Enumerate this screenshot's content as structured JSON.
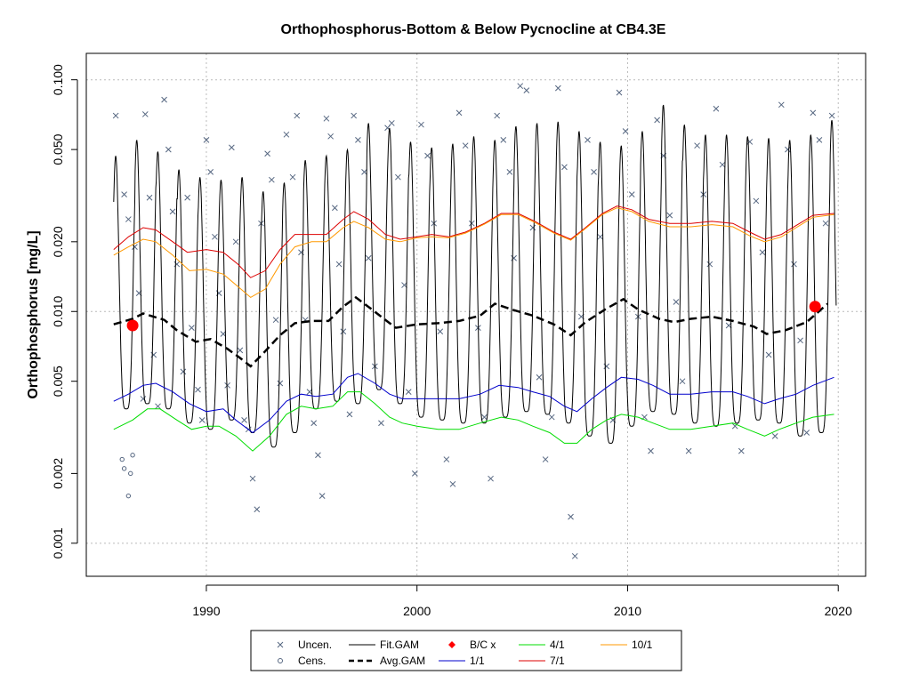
{
  "chart_data": {
    "type": "line",
    "title": "Orthophosphorus-Bottom & Below Pycnocline at CB4.3E",
    "xlabel": "",
    "ylabel": "Orthophosphorus [mg/L]",
    "y_scale": "log",
    "xlim": [
      1984.3,
      2021.3
    ],
    "ylim": [
      0.00072,
      0.13
    ],
    "x_ticks": [
      1990,
      2000,
      2010,
      2020
    ],
    "x_tick_labels": [
      "1990",
      "2000",
      "2010",
      "2020"
    ],
    "y_ticks": [
      0.001,
      0.002,
      0.005,
      0.01,
      0.02,
      0.05,
      0.1
    ],
    "y_tick_labels": [
      "0.001",
      "0.002",
      "0.005",
      "0.010",
      "0.020",
      "0.050",
      "0.100"
    ],
    "grid": true,
    "legend_placement": "bottom",
    "legend": [
      "Uncen.",
      "Cens.",
      "Fit.GAM",
      "Avg.GAM",
      "B/C x",
      "1/1",
      "4/1",
      "7/1",
      "10/1"
    ],
    "series": [
      {
        "name": "Avg.GAM",
        "x": [
          1985.6,
          1986.5,
          1987.0,
          1988.0,
          1988.6,
          1989.5,
          1990.2,
          1991.0,
          1991.6,
          1992.1,
          1992.7,
          1993.5,
          1994.2,
          1995.0,
          1995.8,
          1996.5,
          1997.1,
          1997.8,
          1998.5,
          1999.0,
          2000.0,
          2001.0,
          2002.0,
          2003.0,
          2003.7,
          2004.5,
          2005.5,
          2006.5,
          2007.3,
          2008.0,
          2009.0,
          2009.8,
          2010.5,
          2011.5,
          2012.2,
          2013.0,
          2014.0,
          2015.0,
          2016.0,
          2016.6,
          2017.5,
          2018.5,
          2019.5
        ],
        "y": [
          0.0088,
          0.0093,
          0.0098,
          0.0092,
          0.0083,
          0.0074,
          0.0076,
          0.0069,
          0.0063,
          0.0058,
          0.0066,
          0.0079,
          0.0089,
          0.0091,
          0.0091,
          0.0105,
          0.0115,
          0.0103,
          0.0092,
          0.0085,
          0.0088,
          0.0089,
          0.0091,
          0.0096,
          0.0108,
          0.0102,
          0.0096,
          0.0088,
          0.0079,
          0.009,
          0.0103,
          0.0113,
          0.0102,
          0.0093,
          0.009,
          0.0093,
          0.0095,
          0.0091,
          0.0086,
          0.008,
          0.0083,
          0.009,
          0.0108
        ]
      },
      {
        "name": "1/1",
        "x": [
          1985.6,
          1986.3,
          1987.0,
          1987.6,
          1988.4,
          1989.2,
          1990.0,
          1990.8,
          1991.4,
          1992.2,
          1993.0,
          1993.8,
          1994.5,
          1995.2,
          1996.0,
          1996.7,
          1997.2,
          1998.0,
          1998.7,
          1999.3,
          2000.0,
          2001.0,
          2002.0,
          2003.0,
          2003.9,
          2004.8,
          2005.5,
          2006.3,
          2007.0,
          2007.6,
          2008.3,
          2009.0,
          2009.7,
          2010.5,
          2011.2,
          2012.0,
          2013.0,
          2014.0,
          2015.0,
          2015.7,
          2016.5,
          2017.2,
          2018.0,
          2018.8,
          2019.8
        ],
        "y": [
          0.0041,
          0.0044,
          0.0048,
          0.0049,
          0.0045,
          0.004,
          0.0037,
          0.0038,
          0.0034,
          0.003,
          0.0034,
          0.0041,
          0.0044,
          0.0043,
          0.0044,
          0.0052,
          0.0054,
          0.0049,
          0.0044,
          0.0042,
          0.0042,
          0.0042,
          0.0042,
          0.0044,
          0.0048,
          0.0047,
          0.0045,
          0.0043,
          0.0039,
          0.0037,
          0.0042,
          0.0047,
          0.0052,
          0.0051,
          0.0048,
          0.0044,
          0.0044,
          0.0045,
          0.0045,
          0.0043,
          0.004,
          0.0042,
          0.0044,
          0.0048,
          0.0052
        ]
      },
      {
        "name": "4/1",
        "x": [
          1985.6,
          1986.5,
          1987.2,
          1987.8,
          1988.6,
          1989.3,
          1990.0,
          1990.6,
          1991.4,
          1992.2,
          1993.0,
          1993.8,
          1994.5,
          1995.2,
          1996.0,
          1996.7,
          1997.3,
          1998.0,
          1998.7,
          1999.3,
          2000.0,
          2001.0,
          2002.0,
          2003.0,
          2004.0,
          2004.8,
          2005.5,
          2006.3,
          2007.0,
          2007.6,
          2008.3,
          2009.0,
          2009.7,
          2010.5,
          2011.2,
          2012.0,
          2013.0,
          2014.0,
          2015.0,
          2015.7,
          2016.5,
          2017.2,
          2018.0,
          2018.8,
          2019.8
        ],
        "y": [
          0.0031,
          0.0034,
          0.0038,
          0.0038,
          0.0034,
          0.0031,
          0.0032,
          0.0032,
          0.0029,
          0.0025,
          0.0029,
          0.0036,
          0.0039,
          0.0038,
          0.0039,
          0.0045,
          0.0045,
          0.004,
          0.0035,
          0.0033,
          0.0032,
          0.0031,
          0.0031,
          0.0033,
          0.0035,
          0.0034,
          0.0032,
          0.003,
          0.0027,
          0.0027,
          0.0031,
          0.0034,
          0.0036,
          0.0035,
          0.0033,
          0.0031,
          0.0031,
          0.0032,
          0.0033,
          0.0031,
          0.0029,
          0.0031,
          0.0033,
          0.0035,
          0.0036
        ]
      },
      {
        "name": "7/1",
        "x": [
          1985.6,
          1986.3,
          1987.0,
          1987.6,
          1988.4,
          1989.1,
          1990.0,
          1990.8,
          1991.5,
          1992.1,
          1992.8,
          1993.5,
          1994.2,
          1995.0,
          1995.7,
          1996.5,
          1997.0,
          1997.7,
          1998.5,
          1999.2,
          2000.0,
          2000.7,
          2001.5,
          2002.3,
          2003.2,
          2004.0,
          2004.8,
          2005.6,
          2006.5,
          2007.3,
          2008.0,
          2008.8,
          2009.5,
          2010.2,
          2011.0,
          2012.0,
          2013.0,
          2014.0,
          2015.0,
          2015.8,
          2016.5,
          2017.3,
          2018.0,
          2018.8,
          2019.8
        ],
        "y": [
          0.0185,
          0.021,
          0.023,
          0.0225,
          0.02,
          0.018,
          0.0185,
          0.018,
          0.016,
          0.014,
          0.015,
          0.0185,
          0.0215,
          0.0215,
          0.0215,
          0.025,
          0.027,
          0.025,
          0.0215,
          0.0205,
          0.021,
          0.0215,
          0.021,
          0.022,
          0.024,
          0.0265,
          0.0265,
          0.0245,
          0.022,
          0.0205,
          0.023,
          0.0265,
          0.0285,
          0.0275,
          0.025,
          0.024,
          0.024,
          0.0245,
          0.024,
          0.022,
          0.0205,
          0.0215,
          0.0235,
          0.026,
          0.0265
        ]
      },
      {
        "name": "10/1",
        "x": [
          1985.6,
          1986.3,
          1987.0,
          1987.6,
          1988.4,
          1989.2,
          1990.0,
          1990.8,
          1991.5,
          1992.1,
          1992.8,
          1993.5,
          1994.2,
          1995.0,
          1995.7,
          1996.5,
          1997.0,
          1997.7,
          1998.5,
          1999.2,
          2000.0,
          2000.7,
          2001.5,
          2002.3,
          2003.2,
          2004.0,
          2004.8,
          2005.6,
          2006.5,
          2007.3,
          2008.0,
          2008.8,
          2009.5,
          2010.2,
          2011.0,
          2012.0,
          2013.0,
          2014.0,
          2015.0,
          2015.8,
          2016.5,
          2017.3,
          2018.0,
          2018.8,
          2019.8
        ],
        "y": [
          0.0175,
          0.019,
          0.0205,
          0.02,
          0.0175,
          0.015,
          0.0152,
          0.0145,
          0.0128,
          0.0115,
          0.0125,
          0.016,
          0.019,
          0.02,
          0.02,
          0.023,
          0.0245,
          0.023,
          0.0205,
          0.02,
          0.0208,
          0.021,
          0.0208,
          0.0218,
          0.0238,
          0.0262,
          0.0262,
          0.0242,
          0.0218,
          0.0203,
          0.0228,
          0.0262,
          0.028,
          0.027,
          0.0245,
          0.0232,
          0.0232,
          0.0237,
          0.0232,
          0.0212,
          0.02,
          0.021,
          0.023,
          0.0255,
          0.0262
        ]
      }
    ],
    "fit_gam": {
      "name": "Fit.GAM",
      "start_year": 1985.6,
      "end_year": 2019.9,
      "description_note": "seasonal oscillation between 1/1-like minima and peaks each year",
      "annual_peaks": [
        0.047,
        0.055,
        0.049,
        0.041,
        0.038,
        0.037,
        0.038,
        0.033,
        0.036,
        0.045,
        0.047,
        0.05,
        0.065,
        0.062,
        0.054,
        0.051,
        0.053,
        0.057,
        0.055,
        0.063,
        0.065,
        0.066,
        0.06,
        0.054,
        0.052,
        0.06,
        0.078,
        0.064,
        0.058,
        0.058,
        0.057,
        0.056,
        0.055,
        0.058,
        0.067
      ],
      "annual_troughs": [
        0.0038,
        0.004,
        0.0038,
        0.0033,
        0.0031,
        0.0034,
        0.003,
        0.0026,
        0.003,
        0.0038,
        0.0041,
        0.004,
        0.0046,
        0.004,
        0.0035,
        0.0034,
        0.0033,
        0.0033,
        0.0035,
        0.0037,
        0.0036,
        0.0033,
        0.0029,
        0.0027,
        0.0032,
        0.0037,
        0.0036,
        0.0033,
        0.0032,
        0.0033,
        0.0034,
        0.0033,
        0.0029,
        0.003,
        0.0035
      ]
    },
    "bc_points": [
      {
        "x": 1986.5,
        "y": 0.0087
      },
      {
        "x": 2018.9,
        "y": 0.0105
      }
    ],
    "uncen_points": [
      [
        1985.7,
        0.07
      ],
      [
        1986.1,
        0.032
      ],
      [
        1986.3,
        0.025
      ],
      [
        1986.6,
        0.019
      ],
      [
        1986.8,
        0.012
      ],
      [
        1987.0,
        0.0042
      ],
      [
        1987.1,
        0.071
      ],
      [
        1987.3,
        0.031
      ],
      [
        1987.5,
        0.0065
      ],
      [
        1987.7,
        0.0039
      ],
      [
        1988.0,
        0.082
      ],
      [
        1988.2,
        0.05
      ],
      [
        1988.4,
        0.027
      ],
      [
        1988.6,
        0.016
      ],
      [
        1988.9,
        0.0055
      ],
      [
        1989.1,
        0.031
      ],
      [
        1989.3,
        0.0085
      ],
      [
        1989.6,
        0.0046
      ],
      [
        1989.8,
        0.0034
      ],
      [
        1990.0,
        0.055
      ],
      [
        1990.2,
        0.04
      ],
      [
        1990.4,
        0.021
      ],
      [
        1990.6,
        0.012
      ],
      [
        1990.8,
        0.008
      ],
      [
        1991.0,
        0.0048
      ],
      [
        1991.2,
        0.051
      ],
      [
        1991.4,
        0.02
      ],
      [
        1991.6,
        0.0068
      ],
      [
        1991.8,
        0.0034
      ],
      [
        1992.0,
        0.0031
      ],
      [
        1992.2,
        0.0019
      ],
      [
        1992.4,
        0.0014
      ],
      [
        1992.6,
        0.024
      ],
      [
        1992.9,
        0.048
      ],
      [
        1993.1,
        0.037
      ],
      [
        1993.3,
        0.0092
      ],
      [
        1993.5,
        0.0049
      ],
      [
        1993.8,
        0.058
      ],
      [
        1994.1,
        0.038
      ],
      [
        1994.3,
        0.07
      ],
      [
        1994.5,
        0.018
      ],
      [
        1994.7,
        0.0092
      ],
      [
        1994.9,
        0.0045
      ],
      [
        1995.1,
        0.0033
      ],
      [
        1995.3,
        0.0024
      ],
      [
        1995.5,
        0.0016
      ],
      [
        1995.7,
        0.068
      ],
      [
        1995.9,
        0.057
      ],
      [
        1996.1,
        0.028
      ],
      [
        1996.3,
        0.016
      ],
      [
        1996.5,
        0.0082
      ],
      [
        1996.8,
        0.0036
      ],
      [
        1997.0,
        0.07
      ],
      [
        1997.2,
        0.055
      ],
      [
        1997.5,
        0.04
      ],
      [
        1997.7,
        0.017
      ],
      [
        1998.0,
        0.0058
      ],
      [
        1998.3,
        0.0033
      ],
      [
        1998.6,
        0.062
      ],
      [
        1998.8,
        0.065
      ],
      [
        1999.1,
        0.038
      ],
      [
        1999.4,
        0.013
      ],
      [
        1999.6,
        0.0045
      ],
      [
        1999.9,
        0.002
      ],
      [
        2000.2,
        0.064
      ],
      [
        2000.5,
        0.047
      ],
      [
        2000.8,
        0.024
      ],
      [
        2001.1,
        0.0082
      ],
      [
        2001.4,
        0.0023
      ],
      [
        2001.7,
        0.0018
      ],
      [
        2002.0,
        0.072
      ],
      [
        2002.3,
        0.052
      ],
      [
        2002.6,
        0.024
      ],
      [
        2002.9,
        0.0085
      ],
      [
        2003.2,
        0.0035
      ],
      [
        2003.5,
        0.0019
      ],
      [
        2003.8,
        0.07
      ],
      [
        2004.1,
        0.055
      ],
      [
        2004.4,
        0.04
      ],
      [
        2004.6,
        0.017
      ],
      [
        2004.9,
        0.094
      ],
      [
        2005.2,
        0.09
      ],
      [
        2005.5,
        0.023
      ],
      [
        2005.8,
        0.0052
      ],
      [
        2006.1,
        0.0023
      ],
      [
        2006.4,
        0.0035
      ],
      [
        2006.7,
        0.092
      ],
      [
        2007.0,
        0.042
      ],
      [
        2007.3,
        0.0013
      ],
      [
        2007.5,
        0.00088
      ],
      [
        2007.8,
        0.0095
      ],
      [
        2008.1,
        0.055
      ],
      [
        2008.4,
        0.04
      ],
      [
        2008.7,
        0.021
      ],
      [
        2009.0,
        0.0058
      ],
      [
        2009.3,
        0.0034
      ],
      [
        2009.6,
        0.088
      ],
      [
        2009.9,
        0.06
      ],
      [
        2010.2,
        0.032
      ],
      [
        2010.5,
        0.0095
      ],
      [
        2010.8,
        0.0035
      ],
      [
        2011.1,
        0.0025
      ],
      [
        2011.4,
        0.067
      ],
      [
        2011.7,
        0.047
      ],
      [
        2012.0,
        0.026
      ],
      [
        2012.3,
        0.011
      ],
      [
        2012.6,
        0.005
      ],
      [
        2012.9,
        0.0025
      ],
      [
        2013.3,
        0.052
      ],
      [
        2013.6,
        0.032
      ],
      [
        2013.9,
        0.016
      ],
      [
        2014.2,
        0.075
      ],
      [
        2014.5,
        0.043
      ],
      [
        2014.8,
        0.0087
      ],
      [
        2015.1,
        0.0032
      ],
      [
        2015.4,
        0.0025
      ],
      [
        2015.8,
        0.054
      ],
      [
        2016.1,
        0.03
      ],
      [
        2016.4,
        0.018
      ],
      [
        2016.7,
        0.0065
      ],
      [
        2017.0,
        0.0029
      ],
      [
        2017.3,
        0.078
      ],
      [
        2017.6,
        0.05
      ],
      [
        2017.9,
        0.016
      ],
      [
        2018.2,
        0.0075
      ],
      [
        2018.5,
        0.003
      ],
      [
        2018.8,
        0.072
      ],
      [
        2019.1,
        0.055
      ],
      [
        2019.4,
        0.024
      ],
      [
        2019.7,
        0.07
      ]
    ],
    "cens_points": [
      [
        1986.0,
        0.0023
      ],
      [
        1986.3,
        0.0016
      ],
      [
        1986.4,
        0.002
      ],
      [
        1986.5,
        0.0024
      ],
      [
        1986.1,
        0.0021
      ]
    ]
  },
  "colors": {
    "fit": "#000000",
    "avg": "#000000",
    "one_one": "#0000cc",
    "four_one": "#00dd00",
    "seven_one": "#dd0000",
    "ten_one": "#ff9900",
    "bc": "#ff0000",
    "points": "#556680",
    "grid": "#bbbbbb"
  }
}
